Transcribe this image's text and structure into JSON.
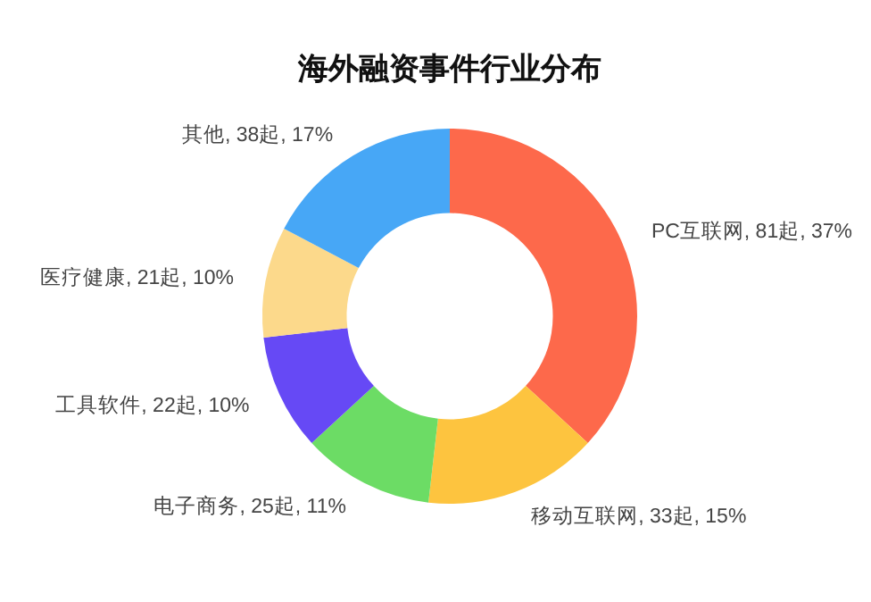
{
  "chart_data": {
    "type": "donut",
    "title": "海外融资事件行业分布",
    "categories": [
      "PC互联网, 81起, 37%",
      "移动互联网, 33起, 15%",
      "电子商务, 25起, 11%",
      "工具软件, 22起, 10%",
      "医疗健康, 21起, 10%",
      "其他, 38起, 17%"
    ],
    "values": [
      81,
      33,
      25,
      22,
      21,
      38
    ],
    "colors": [
      "#fd694b",
      "#fdc43f",
      "#6cdc65",
      "#6649f5",
      "#fcd98b",
      "#47a7f6"
    ]
  }
}
